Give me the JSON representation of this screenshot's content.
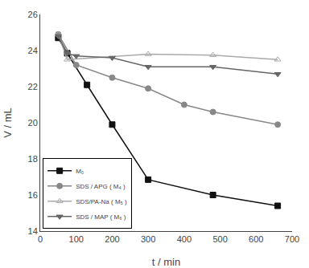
{
  "chart_data": {
    "type": "line",
    "x_label": "t / min",
    "y_label": "V / mL",
    "series": [
      {
        "name": "M₀",
        "color": "#111111",
        "marker": "square",
        "line_style": "solid",
        "x": [
          50,
          75,
          130,
          200,
          300,
          480,
          660
        ],
        "values": [
          24.7,
          23.85,
          22.1,
          19.9,
          16.85,
          16.0,
          15.4
        ]
      },
      {
        "name": "SDS / APG ( M₄ )",
        "color": "#888888",
        "marker": "circle",
        "line_style": "solid",
        "x": [
          50,
          100,
          200,
          300,
          400,
          480,
          660
        ],
        "values": [
          24.9,
          23.2,
          22.5,
          21.9,
          21.0,
          20.6,
          19.9
        ]
      },
      {
        "name": "SDS/PA-Na ( M₅ )",
        "color": "#aaaaaa",
        "marker": "triangle-up-open",
        "line_style": "solid",
        "x": [
          50,
          75,
          300,
          480,
          660
        ],
        "values": [
          24.9,
          23.5,
          23.8,
          23.75,
          23.5
        ]
      },
      {
        "name": "SDS / MAP ( M₆ )",
        "color": "#666666",
        "marker": "triangle-down",
        "line_style": "solid",
        "x": [
          50,
          75,
          100,
          200,
          300,
          480,
          660
        ],
        "values": [
          24.8,
          23.85,
          23.7,
          23.6,
          23.1,
          23.1,
          22.7
        ]
      }
    ],
    "xlim": [
      0,
      700
    ],
    "ylim": [
      14,
      26
    ],
    "xticks": [
      0,
      100,
      200,
      300,
      400,
      500,
      600,
      700
    ],
    "yticks": [
      14,
      16,
      18,
      20,
      22,
      24,
      26
    ],
    "grid": false,
    "legend": "lower left"
  }
}
